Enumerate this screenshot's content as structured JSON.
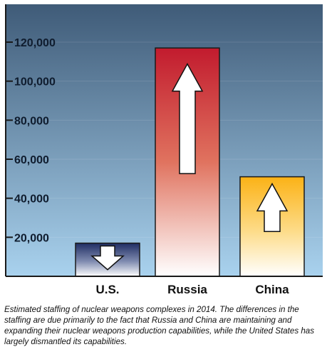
{
  "chart_data": {
    "type": "bar",
    "categories": [
      "U.S.",
      "Russia",
      "China"
    ],
    "values": [
      17000,
      117000,
      51000
    ],
    "trend": [
      "down",
      "up",
      "up"
    ],
    "ylim": [
      0,
      120000
    ],
    "yticks": [
      20000,
      40000,
      60000,
      80000,
      100000,
      120000
    ],
    "ytick_labels": [
      "20,000",
      "40,000",
      "60,000",
      "80,000",
      "100,000",
      "120,000"
    ],
    "grid": false,
    "legend": "none",
    "colors": {
      "us_top": "#1f2d63",
      "us_bottom": "#ffffff",
      "russia_top": "#c21b2e",
      "russia_bottom": "#ffffff",
      "china_top": "#fbb216",
      "china_bottom": "#ffffff",
      "bg_top": "#3f5b78",
      "bg_bottom": "#a9d2ee",
      "axis": "#1a1a1a"
    }
  },
  "caption": "Estimated staffing of nuclear weapons complexes in 2014. The differences in the staffing are due primarily to the fact that Russia and China are maintaining and expanding their nuclear weapons production capabilities, while the United States has largely dismantled its capabilities."
}
